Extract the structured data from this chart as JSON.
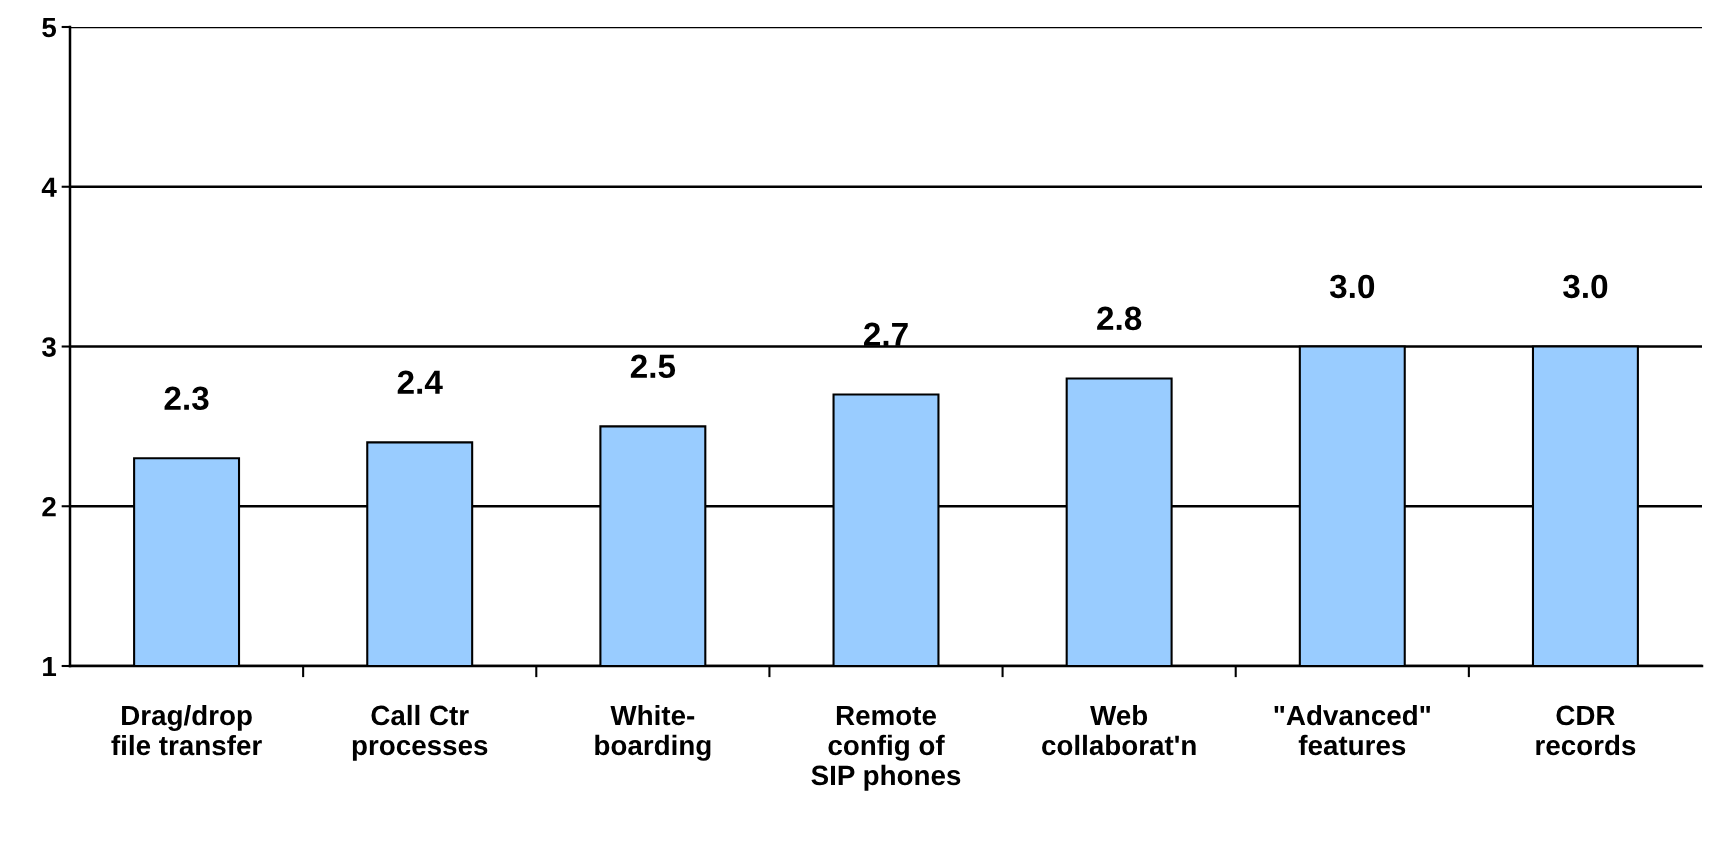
{
  "chart_data": {
    "type": "bar",
    "categories": [
      "Drag/drop\nfile transfer",
      "Call Ctr\nprocesses",
      "White-\nboarding",
      "Remote\nconfig of\nSIP phones",
      "Web\ncollaborat'n",
      "\"Advanced\"\nfeatures",
      "CDR\nrecords"
    ],
    "values": [
      2.3,
      2.4,
      2.5,
      2.7,
      2.8,
      3.0,
      3.0
    ],
    "value_labels": [
      "2.3",
      "2.4",
      "2.5",
      "2.7",
      "2.8",
      "3.0",
      "3.0"
    ],
    "color": "#99ccff",
    "ylim": [
      1,
      5
    ],
    "yticks": [
      1,
      2,
      3,
      4,
      5
    ],
    "grid": "y"
  }
}
